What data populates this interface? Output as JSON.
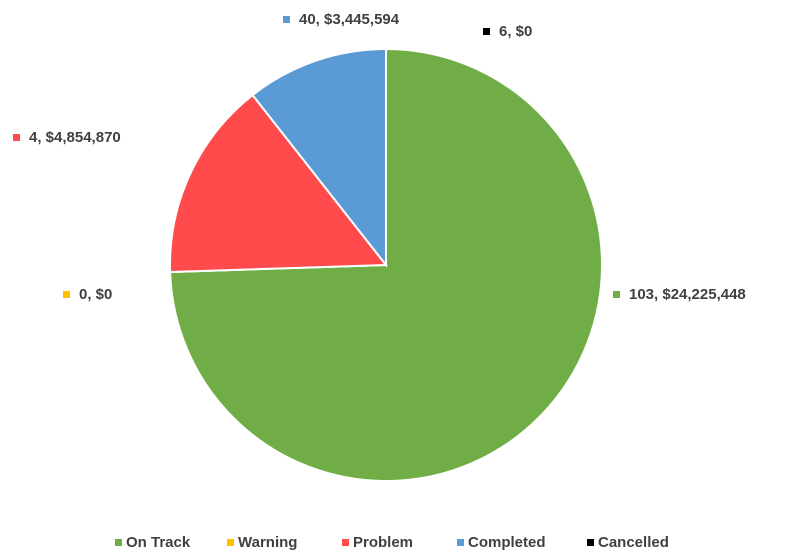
{
  "chart_data": {
    "type": "pie",
    "categories": [
      "On Track",
      "Warning",
      "Problem",
      "Completed",
      "Cancelled"
    ],
    "values": [
      24225448,
      0,
      4854870,
      3445594,
      0
    ],
    "value_labels": [
      "103, $24,225,448",
      "0, $0",
      "4, $4,854,870",
      "40, $3,445,594",
      "6, $0"
    ],
    "colors": [
      "#70ad47",
      "#ffc000",
      "#ff4b4b",
      "#5b9bd5",
      "#000000"
    ],
    "legend": "bottom"
  }
}
